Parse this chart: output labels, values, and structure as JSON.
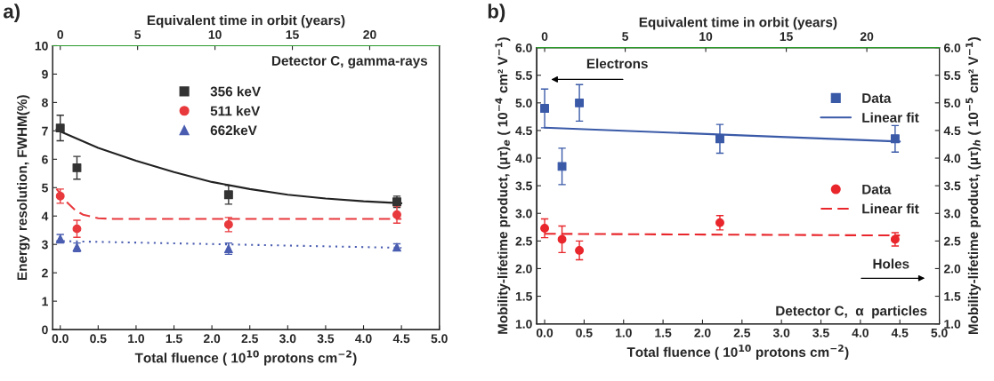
{
  "chart_data": [
    {
      "type": "scatter",
      "title": "a)",
      "xlabel": "Total fluence ( 10$^{10}$ protons cm$^{−2}$)",
      "ylabel": "Energy resolution, FWHM(%)",
      "x2label": "Equivalent time in orbit (years)",
      "xlim": [
        -0.1,
        5.0
      ],
      "xticks": [
        {
          "value": 0,
          "label": "0.0"
        },
        0.5,
        {
          "value": 1,
          "label": "1.0"
        },
        1.5,
        {
          "value": 2,
          "label": "2.0"
        },
        2.5,
        {
          "value": 3,
          "label": "3.0"
        },
        3.5,
        {
          "value": 4,
          "label": "4.0"
        },
        4.5,
        {
          "value": 5,
          "label": "5.0"
        }
      ],
      "ylim": [
        0,
        10
      ],
      "yticks": [
        0,
        1,
        2,
        3,
        4,
        5,
        6,
        7,
        8,
        9,
        10
      ],
      "x2lim": [
        -0.49,
        24.5
      ],
      "x2ticks": [
        0,
        5,
        10,
        15,
        20
      ],
      "grid": false,
      "legend": "top",
      "annotations": [
        "Detector C, gamma-rays"
      ],
      "series": [
        {
          "name": "356 keV",
          "type": "scatter",
          "marker": "square",
          "color": "#333333",
          "x": [
            0,
            0.22,
            2.22,
            4.44
          ],
          "values": [
            7.1,
            5.7,
            4.75,
            4.5
          ],
          "errors": [
            0.45,
            0.4,
            0.33,
            0.2
          ]
        },
        {
          "name": "511 keV",
          "type": "scatter",
          "marker": "circle",
          "color": "#e8393d",
          "x": [
            0,
            0.22,
            2.22,
            4.44
          ],
          "values": [
            4.7,
            3.55,
            3.7,
            4.05
          ],
          "errors": [
            0.25,
            0.3,
            0.25,
            0.3
          ]
        },
        {
          "name": "662keV",
          "type": "scatter",
          "marker": "triangle",
          "color": "#4a5db0",
          "x": [
            0,
            0.22,
            2.22,
            4.44
          ],
          "values": [
            3.2,
            2.9,
            2.85,
            2.9
          ],
          "errors": [
            0.15,
            0.15,
            0.2,
            0.12
          ]
        },
        {
          "type": "line",
          "line_style": "solid",
          "color": "#222222",
          "x": [
            -0.05,
            0,
            0.5,
            1,
            1.5,
            2,
            2.5,
            3,
            3.5,
            4,
            4.5
          ],
          "values": [
            7.05,
            6.98,
            6.4,
            5.95,
            5.55,
            5.2,
            4.95,
            4.75,
            4.62,
            4.52,
            4.45
          ]
        },
        {
          "type": "line",
          "line_style": "dashed",
          "color": "#e8393d",
          "x": [
            -0.05,
            0,
            0.1,
            0.2,
            0.3,
            0.5,
            0.7,
            4.5
          ],
          "values": [
            4.95,
            4.8,
            4.45,
            4.2,
            4.05,
            3.92,
            3.9,
            3.9
          ]
        },
        {
          "type": "line",
          "line_style": "dotted",
          "color": "#4a5db0",
          "x": [
            -0.05,
            4.5
          ],
          "values": [
            3.12,
            2.88
          ]
        }
      ]
    },
    {
      "type": "scatter",
      "title": "b)",
      "xlabel": "Total fluence ( 10$^{10}$ protons cm$^{−2}$)",
      "ylabel": "Mobility-lifetime product, (μτ)$_{e}$ ( 10$^{−4}$ cm² V$^{−1}$)",
      "y2label": "Mobility-lifetime product, (μτ)$_{h}$ ( 10$^{−5}$ cm² V$^{−1}$)",
      "x2label": "Equivalent time in orbit (years)",
      "xlim": [
        -0.1,
        5.0
      ],
      "xticks": [
        {
          "value": 0,
          "label": "0.0"
        },
        0.5,
        {
          "value": 1,
          "label": "1.0"
        },
        1.5,
        {
          "value": 2,
          "label": "2.0"
        },
        2.5,
        {
          "value": 3,
          "label": "3.0"
        },
        3.5,
        {
          "value": 4,
          "label": "4.0"
        },
        4.5,
        {
          "value": 5,
          "label": "5.0"
        }
      ],
      "ylim": [
        1,
        6
      ],
      "yticks": [
        {
          "value": 1,
          "label": "1.0"
        },
        1.5,
        {
          "value": 2,
          "label": "2.0"
        },
        2.5,
        {
          "value": 3,
          "label": "3.0"
        },
        3.5,
        {
          "value": 4,
          "label": "4.0"
        },
        4.5,
        {
          "value": 5,
          "label": "5.0"
        },
        5.5,
        {
          "value": 6,
          "label": "6.0"
        }
      ],
      "y2lim": [
        1,
        6
      ],
      "y2ticks": [
        {
          "value": 1,
          "label": "1.0"
        },
        1.5,
        {
          "value": 2,
          "label": "2.0"
        },
        2.5,
        {
          "value": 3,
          "label": "3.0"
        },
        3.5,
        {
          "value": 4,
          "label": "4.0"
        },
        4.5,
        {
          "value": 5,
          "label": "5.0"
        },
        5.5,
        {
          "value": 6,
          "label": "6.0"
        }
      ],
      "x2lim": [
        -0.49,
        24.5
      ],
      "x2ticks": [
        0,
        5,
        10,
        15,
        20
      ],
      "grid": false,
      "legend": "right",
      "annotations": [
        "Electrons",
        "Holes",
        "Detector C,  α  particles"
      ],
      "series": [
        {
          "name": "Data",
          "type": "scatter",
          "marker": "square",
          "color": "#3a5aa8",
          "x": [
            0,
            0.22,
            0.44,
            2.22,
            4.44
          ],
          "values": [
            4.9,
            3.85,
            5.0,
            4.35,
            4.35
          ],
          "errors": [
            0.35,
            0.33,
            0.33,
            0.26,
            0.24
          ]
        },
        {
          "name": "Linear fit",
          "type": "line",
          "line_style": "solid",
          "color": "#3a5aa8",
          "x": [
            0,
            4.5
          ],
          "values": [
            4.55,
            4.3
          ]
        },
        {
          "name": "Data",
          "type": "scatter",
          "marker": "circle",
          "axis": "y2",
          "color": "#e8262b",
          "x": [
            0,
            0.22,
            0.44,
            2.22,
            4.44
          ],
          "values": [
            2.73,
            2.53,
            2.33,
            2.83,
            2.53
          ],
          "errors": [
            0.17,
            0.24,
            0.17,
            0.13,
            0.12
          ]
        },
        {
          "name": "Linear fit",
          "type": "line",
          "line_style": "dashed",
          "axis": "y2",
          "color": "#e8262b",
          "x": [
            0,
            4.5
          ],
          "values": [
            2.63,
            2.6
          ]
        }
      ]
    }
  ]
}
